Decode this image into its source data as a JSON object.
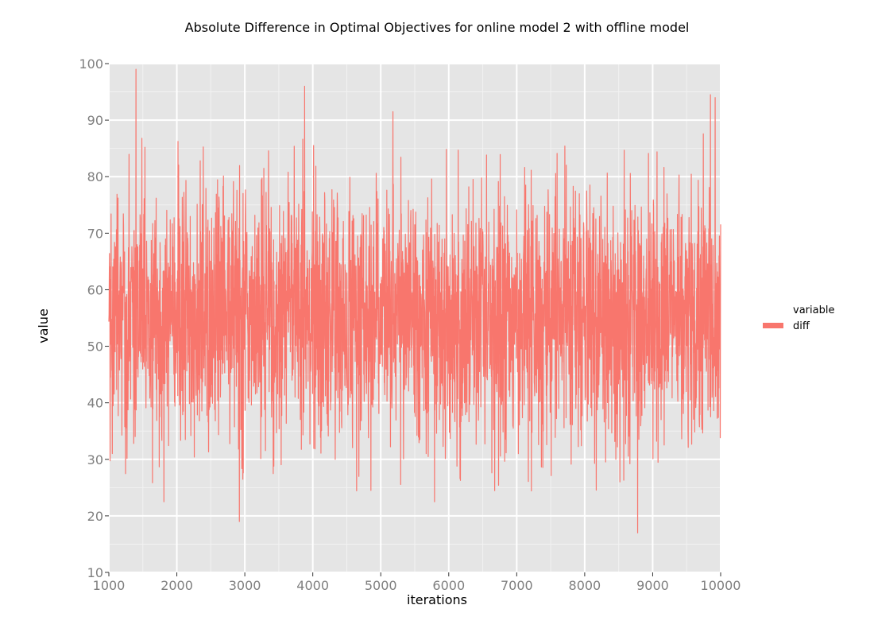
{
  "chart_data": {
    "type": "line",
    "title": "Absolute Difference in Optimal Objectives for online model 2 with offline model",
    "xlabel": "iterations",
    "ylabel": "value",
    "xlim": [
      1000,
      10000
    ],
    "ylim": [
      10,
      100
    ],
    "x_ticks": [
      1000,
      2000,
      3000,
      4000,
      5000,
      6000,
      7000,
      8000,
      9000,
      10000
    ],
    "y_ticks": [
      10,
      20,
      30,
      40,
      50,
      60,
      70,
      80,
      90,
      100
    ],
    "x_tick_labels": [
      "1000",
      "2000",
      "3000",
      "4000",
      "5000",
      "6000",
      "7000",
      "8000",
      "9000",
      "10000"
    ],
    "y_tick_labels": [
      "10",
      "20",
      "30",
      "40",
      "50",
      "60",
      "70",
      "80",
      "90",
      "100"
    ],
    "grid": true,
    "legend": {
      "title": "variable",
      "placement": "right",
      "entries": [
        "diff"
      ]
    },
    "series": [
      {
        "name": "diff",
        "color": "#f8766d",
        "x_range": [
          1000,
          10000
        ],
        "typical_band": [
          35,
          75
        ],
        "notable_points": [
          {
            "x": 1400,
            "y": 99
          },
          {
            "x": 2920,
            "y": 19
          },
          {
            "x": 3880,
            "y": 96
          },
          {
            "x": 9920,
            "y": 94
          },
          {
            "x": 8780,
            "y": 17
          },
          {
            "x": 1810,
            "y": 22.5
          },
          {
            "x": 9850,
            "y": 94.5
          },
          {
            "x": 5180,
            "y": 91.5
          },
          {
            "x": 5790,
            "y": 22.5
          }
        ]
      }
    ]
  }
}
